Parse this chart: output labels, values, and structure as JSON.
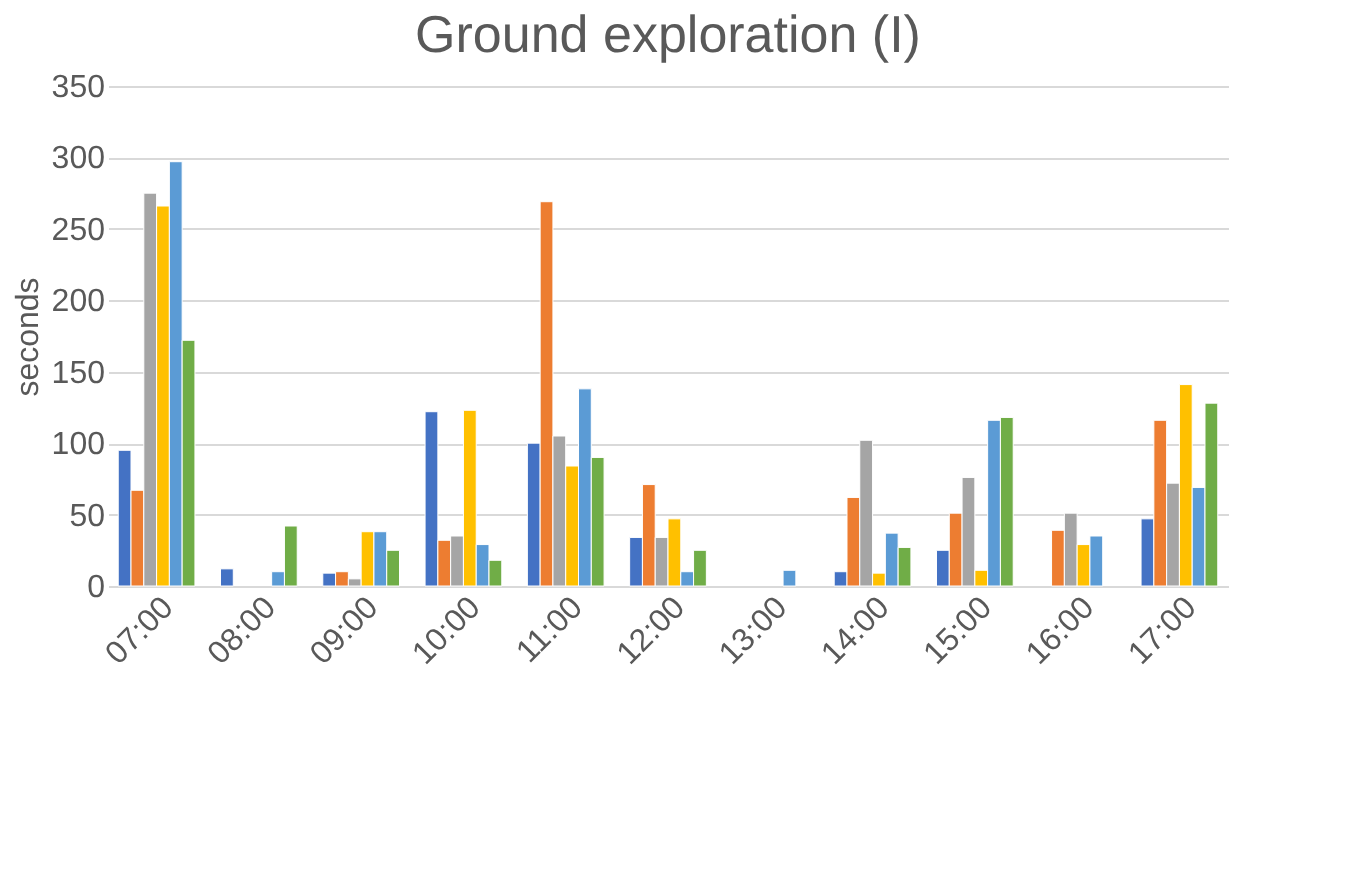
{
  "chart_data": {
    "type": "bar",
    "title": "Ground exploration (I)",
    "ylabel": "seconds",
    "categories": [
      "07:00",
      "08:00",
      "09:00",
      "10:00",
      "11:00",
      "12:00",
      "13:00",
      "14:00",
      "15:00",
      "16:00",
      "17:00"
    ],
    "series": [
      {
        "color": "#4472c4",
        "values": [
          95,
          12,
          9,
          122,
          100,
          34,
          null,
          10,
          25,
          null,
          47
        ]
      },
      {
        "color": "#ed7d31",
        "values": [
          67,
          null,
          10,
          32,
          269,
          71,
          null,
          62,
          51,
          39,
          116
        ]
      },
      {
        "color": "#a5a5a5",
        "values": [
          275,
          null,
          5,
          35,
          105,
          34,
          null,
          102,
          76,
          51,
          72
        ]
      },
      {
        "color": "#ffc000",
        "values": [
          266,
          null,
          38,
          123,
          84,
          47,
          null,
          9,
          11,
          29,
          141
        ]
      },
      {
        "color": "#5b9bd5",
        "values": [
          297,
          10,
          38,
          29,
          138,
          10,
          11,
          37,
          116,
          35,
          69
        ]
      },
      {
        "color": "#70ad47",
        "values": [
          172,
          42,
          25,
          18,
          90,
          25,
          null,
          27,
          118,
          null,
          128
        ]
      }
    ],
    "ylim": [
      0,
      350
    ],
    "yticks": [
      0,
      50,
      100,
      150,
      200,
      250,
      300,
      350
    ],
    "grid": "y"
  }
}
